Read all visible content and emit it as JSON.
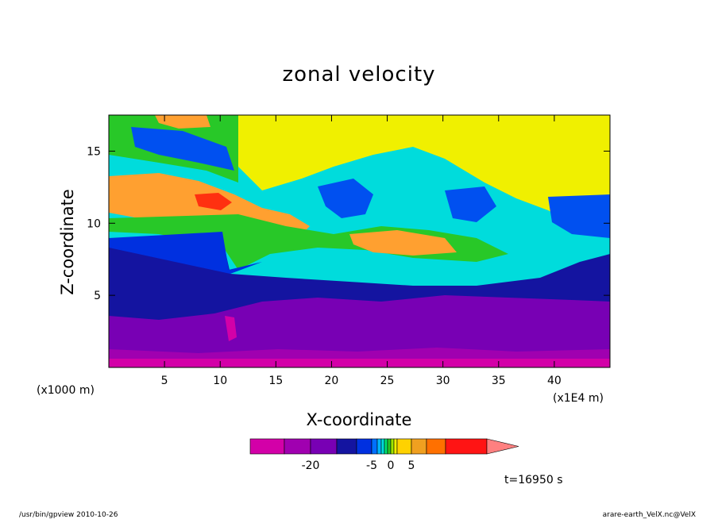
{
  "chart_data": {
    "type": "heatmap",
    "title": "zonal velocity",
    "xlabel": "X-coordinate",
    "ylabel": "Z-coordinate",
    "x_scale_note": "(x1E4 m)",
    "y_scale_note": "(x1000 m)",
    "xlim": [
      0,
      45
    ],
    "ylim": [
      0,
      17.5
    ],
    "x_ticks": [
      "5",
      "10",
      "15",
      "20",
      "25",
      "30",
      "35",
      "40"
    ],
    "y_ticks": [
      "5",
      "10",
      "15"
    ],
    "colorbar": {
      "levels": [
        -30,
        -25,
        -20,
        -15,
        -10,
        -5,
        -4,
        -3,
        -2,
        -1,
        0,
        1,
        2,
        5,
        10,
        15
      ],
      "labels": [
        "-20",
        "-5",
        "0",
        "5"
      ],
      "colors": [
        "#d300a8",
        "#a000b0",
        "#7800b4",
        "#1414a0",
        "#0030e0",
        "#0070ff",
        "#00b4ff",
        "#00dcdc",
        "#00e070",
        "#28c828",
        "#a0e600",
        "#f0f000",
        "#ffd200",
        "#f0a020",
        "#ff7000",
        "#ff1414"
      ],
      "extend_color": "#ff8080"
    },
    "time_label": "t=16950 s"
  },
  "footer": {
    "left": "/usr/bin/gpview   2010-10-26",
    "right": "arare-earth_VelX.nc@VelX"
  }
}
